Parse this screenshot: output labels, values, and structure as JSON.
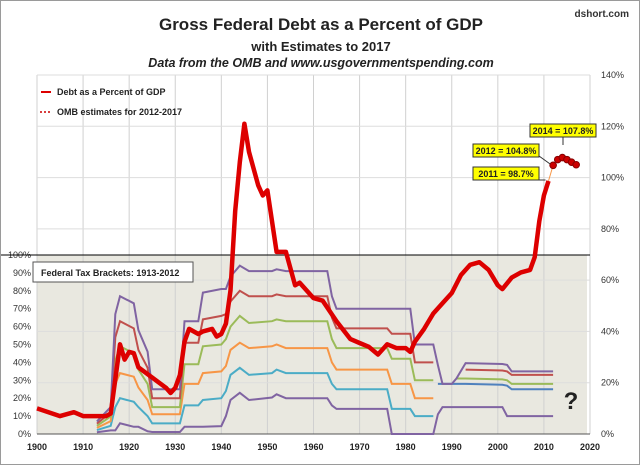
{
  "chart_data": [
    {
      "type": "line",
      "title": "Gross Federal Debt as a Percent of GDP",
      "subtitle": "with Estimates  to 2017",
      "source": "Data from the OMB and www.usgovernmentspending.com",
      "brand": "dshort.com",
      "xlim": [
        1900,
        2020
      ],
      "x_ticks": [
        "1900",
        "1910",
        "1920",
        "1930",
        "1940",
        "1950",
        "1960",
        "1970",
        "1980",
        "1990",
        "2000",
        "2010",
        "2020"
      ],
      "right_axis": {
        "ylim": [
          0,
          140
        ],
        "ticks": [
          "0%",
          "20%",
          "40%",
          "60%",
          "80%",
          "100%",
          "120%",
          "140%"
        ]
      },
      "left_axis": {
        "ylim": [
          0,
          100
        ],
        "ticks": [
          "0%",
          "10%",
          "20%",
          "30%",
          "40%",
          "50%",
          "60%",
          "70%",
          "80%",
          "90%",
          "100%"
        ]
      },
      "legend": [
        "Debt as a Percent of GDP",
        "OMB estimates for 2012-2017"
      ],
      "legend_placement": "top-left",
      "colors": {
        "debt": "#dd0000",
        "estimates": "#cc0000",
        "label_bg": "#ffff00",
        "label_text": "#cc0000"
      },
      "series": [
        {
          "name": "Debt as a Percent of GDP",
          "axis": "right",
          "x": [
            1900,
            1905,
            1908,
            1910,
            1915,
            1916,
            1918,
            1919,
            1920,
            1921,
            1922,
            1925,
            1928,
            1929,
            1930,
            1931,
            1932,
            1933,
            1935,
            1936,
            1938,
            1939,
            1940,
            1941,
            1942,
            1943,
            1944,
            1945,
            1946,
            1948,
            1949,
            1950,
            1952,
            1953,
            1954,
            1956,
            1957,
            1960,
            1962,
            1965,
            1968,
            1970,
            1972,
            1974,
            1976,
            1978,
            1980,
            1981,
            1982,
            1984,
            1986,
            1988,
            1990,
            1992,
            1994,
            1996,
            1998,
            2000,
            2001,
            2003,
            2005,
            2007,
            2008,
            2009,
            2010,
            2011
          ],
          "y": [
            10,
            7,
            8.5,
            7,
            7,
            8,
            35,
            29,
            32,
            31.5,
            26,
            22,
            18,
            16,
            18,
            23,
            36,
            41,
            39,
            40,
            41,
            38,
            39,
            43,
            56,
            87,
            106,
            121,
            110,
            97,
            93,
            95,
            71,
            71,
            71,
            58,
            59,
            53,
            52,
            44,
            37,
            35.5,
            34,
            31,
            35,
            33.5,
            33.5,
            32,
            36,
            41,
            47,
            51,
            55,
            62,
            66,
            67,
            64,
            58,
            56.5,
            61,
            63,
            64,
            69,
            83,
            93,
            98.7
          ]
        },
        {
          "name": "OMB estimates for 2012-2017",
          "axis": "right",
          "x": [
            2012,
            2013,
            2014,
            2015,
            2016,
            2017
          ],
          "y": [
            104.8,
            107,
            107.8,
            107,
            106,
            105
          ]
        }
      ],
      "annotations": [
        {
          "year": 2011,
          "text": "2011 = 98.7%"
        },
        {
          "year": 2012,
          "text": "2012 = 104.8%"
        },
        {
          "year": 2014,
          "text": "2014 = 107.8%"
        }
      ],
      "question_mark": "?",
      "inset": {
        "title": "Federal Tax Brackets: 1913-2012",
        "axis": "left",
        "years": [
          1913,
          1916,
          1917,
          1918,
          1921,
          1922,
          1924,
          1925,
          1931,
          1932,
          1935,
          1936,
          1940,
          1941,
          1942,
          1944,
          1946,
          1951,
          1952,
          1954,
          1963,
          1964,
          1965,
          1976,
          1977,
          1981,
          1982,
          1986,
          1987,
          1988,
          1990,
          1991,
          1993,
          2001,
          2002,
          2003,
          2012
        ],
        "brackets": [
          [
            1,
            2,
            2,
            6,
            4,
            4,
            1.5,
            1.1,
            1.1,
            4,
            4,
            4,
            4.4,
            10,
            19,
            23,
            19,
            20.4,
            22.2,
            20,
            20,
            16,
            14,
            14,
            0,
            0,
            0,
            0,
            11,
            15,
            15,
            15,
            15,
            15,
            10,
            10,
            10
          ],
          [
            2.2,
            4.6,
            15,
            20,
            18,
            15,
            10,
            5.9,
            5.9,
            16,
            16,
            19,
            20,
            24,
            33,
            37,
            33,
            34,
            36,
            34,
            34,
            28,
            25,
            25,
            14,
            14,
            10,
            10,
            null,
            null,
            null,
            null,
            null,
            null,
            null,
            null,
            null
          ],
          [
            3.4,
            7.2,
            28,
            34,
            32,
            26,
            19,
            11,
            11,
            28,
            28,
            34,
            35,
            38,
            47,
            51,
            48,
            49,
            50,
            48,
            48,
            40,
            36,
            36,
            28,
            28,
            20,
            20,
            null,
            null,
            null,
            null,
            null,
            null,
            null,
            null,
            null
          ],
          [
            4.6,
            9.8,
            41,
            49,
            45,
            36,
            28,
            15,
            15,
            39,
            39,
            49,
            50,
            53,
            60,
            66,
            62,
            63,
            64,
            63,
            63,
            53,
            48,
            48,
            42,
            42,
            30,
            30,
            null,
            null,
            null,
            null,
            null,
            null,
            null,
            null,
            null
          ],
          [
            5.8,
            12,
            54,
            63,
            59,
            47,
            37,
            20,
            20,
            51,
            51,
            64,
            66,
            67,
            74,
            80,
            77,
            77,
            78,
            77,
            77,
            65,
            59,
            59,
            56,
            56,
            40,
            40,
            null,
            null,
            null,
            null,
            null,
            null,
            null,
            null,
            null
          ],
          [
            null,
            null,
            null,
            null,
            null,
            null,
            null,
            null,
            null,
            null,
            null,
            null,
            null,
            null,
            null,
            null,
            null,
            null,
            null,
            null,
            null,
            null,
            null,
            null,
            null,
            null,
            null,
            null,
            28,
            28,
            28,
            28,
            28,
            27.5,
            27,
            25,
            25
          ],
          [
            null,
            null,
            null,
            null,
            null,
            null,
            null,
            null,
            null,
            null,
            null,
            null,
            null,
            null,
            null,
            null,
            null,
            null,
            null,
            null,
            null,
            null,
            null,
            null,
            null,
            null,
            null,
            null,
            null,
            null,
            null,
            31,
            31,
            30.5,
            30,
            28,
            28
          ],
          [
            null,
            null,
            null,
            null,
            null,
            null,
            null,
            null,
            null,
            null,
            null,
            null,
            null,
            null,
            null,
            null,
            null,
            null,
            null,
            null,
            null,
            null,
            null,
            null,
            null,
            null,
            null,
            null,
            null,
            null,
            null,
            null,
            36,
            35.5,
            35,
            33,
            33
          ],
          [
            7,
            15,
            67,
            77,
            73,
            58,
            46,
            25,
            25,
            63,
            63,
            79,
            81,
            81,
            88,
            94,
            91,
            91,
            92,
            91,
            91,
            77,
            70,
            70,
            70,
            70,
            50,
            50,
            38.5,
            28,
            28,
            31,
            39.6,
            39.1,
            38.6,
            35,
            35
          ]
        ],
        "bracket_colors": [
          "#8064a2",
          "#4bacc6",
          "#f79646",
          "#9bbb59",
          "#c0504d",
          "#4f81bd",
          "#9bbb59",
          "#c0504d",
          "#8064a2"
        ]
      }
    }
  ]
}
